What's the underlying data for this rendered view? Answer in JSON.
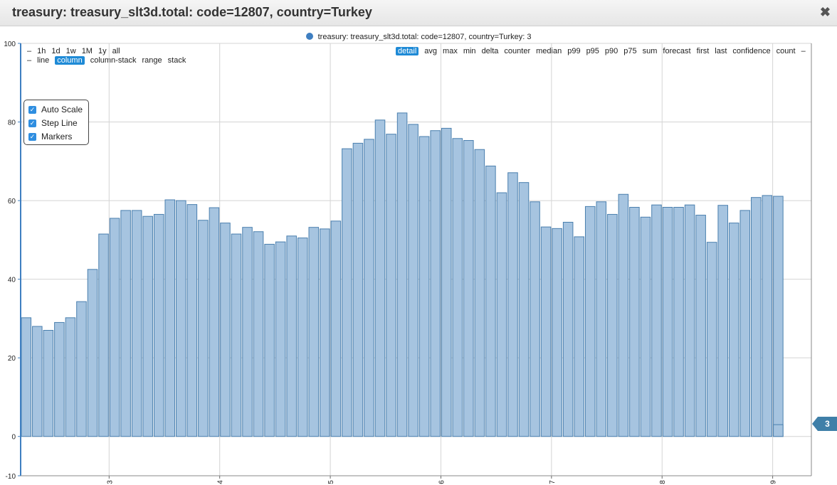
{
  "window": {
    "title": "treasury: treasury_slt3d.total: code=12807, country=Turkey",
    "close_glyph": "✖"
  },
  "legend": {
    "label": "treasury: treasury_slt3d.total: code=12807, country=Turkey: 3",
    "color": "#3f7fc1"
  },
  "time_range_menu": [
    "–",
    "1h",
    "1d",
    "1w",
    "1M",
    "1y",
    "all"
  ],
  "chart_type_menu": {
    "items": [
      "–",
      "line",
      "column",
      "column-stack",
      "range",
      "stack"
    ],
    "active": "column"
  },
  "aggregation_menu": {
    "items": [
      "detail",
      "avg",
      "max",
      "min",
      "delta",
      "counter",
      "median",
      "p99",
      "p95",
      "p90",
      "p75",
      "sum",
      "forecast",
      "first",
      "last",
      "confidence",
      "count",
      "–"
    ],
    "active": "detail"
  },
  "options": {
    "auto_scale": "Auto Scale",
    "step_line": "Step Line",
    "markers": "Markers"
  },
  "last_value_flag": "3",
  "chart_data": {
    "type": "bar",
    "title": "",
    "xlabel": "",
    "ylabel": "",
    "xlim": [
      2.2,
      9.35
    ],
    "ylim": [
      -10,
      100
    ],
    "x_ticks": [
      3,
      4,
      5,
      6,
      7,
      8,
      9
    ],
    "y_ticks": [
      -10,
      0,
      20,
      40,
      60,
      80,
      100
    ],
    "grid": true,
    "bar_color": "#a6c4e0",
    "bar_edge_color": "#4a7fae",
    "series": [
      {
        "name": "treasury: treasury_slt3d.total: code=12807, country=Turkey",
        "x": [
          2.2,
          2.3,
          2.4,
          2.5,
          2.6,
          2.7,
          2.8,
          2.9,
          3.0,
          3.1,
          3.2,
          3.3,
          3.4,
          3.5,
          3.6,
          3.7,
          3.8,
          3.9,
          4.0,
          4.1,
          4.2,
          4.3,
          4.4,
          4.5,
          4.6,
          4.7,
          4.8,
          4.9,
          5.0,
          5.1,
          5.2,
          5.3,
          5.4,
          5.5,
          5.6,
          5.7,
          5.8,
          5.9,
          6.0,
          6.1,
          6.2,
          6.3,
          6.4,
          6.5,
          6.6,
          6.7,
          6.8,
          6.9,
          7.0,
          7.1,
          7.2,
          7.3,
          7.4,
          7.5,
          7.6,
          7.7,
          7.8,
          7.9,
          8.0,
          8.1,
          8.2,
          8.3,
          8.4,
          8.5,
          8.6,
          8.7,
          8.8,
          8.9,
          9.0
        ],
        "values": [
          30.2,
          28.0,
          27.0,
          29.0,
          30.2,
          34.3,
          42.5,
          51.5,
          55.5,
          57.5,
          57.5,
          56.0,
          56.5,
          60.2,
          60.0,
          59.0,
          55.0,
          58.2,
          54.3,
          51.5,
          53.2,
          52.1,
          48.9,
          49.5,
          51.0,
          50.5,
          53.2,
          52.8,
          54.8,
          73.2,
          74.6,
          75.6,
          80.5,
          76.9,
          82.3,
          79.4,
          76.3,
          77.8,
          78.4,
          75.8,
          75.3,
          73.0,
          68.8,
          62.0,
          67.1,
          64.6,
          59.7,
          53.3,
          52.9,
          54.5,
          50.8,
          58.5,
          59.7,
          56.5,
          61.6,
          58.3,
          55.8,
          58.9,
          58.3,
          58.3,
          58.9,
          56.3,
          49.4,
          58.8,
          54.3,
          57.5,
          60.8,
          61.3,
          61.1
        ]
      }
    ]
  }
}
